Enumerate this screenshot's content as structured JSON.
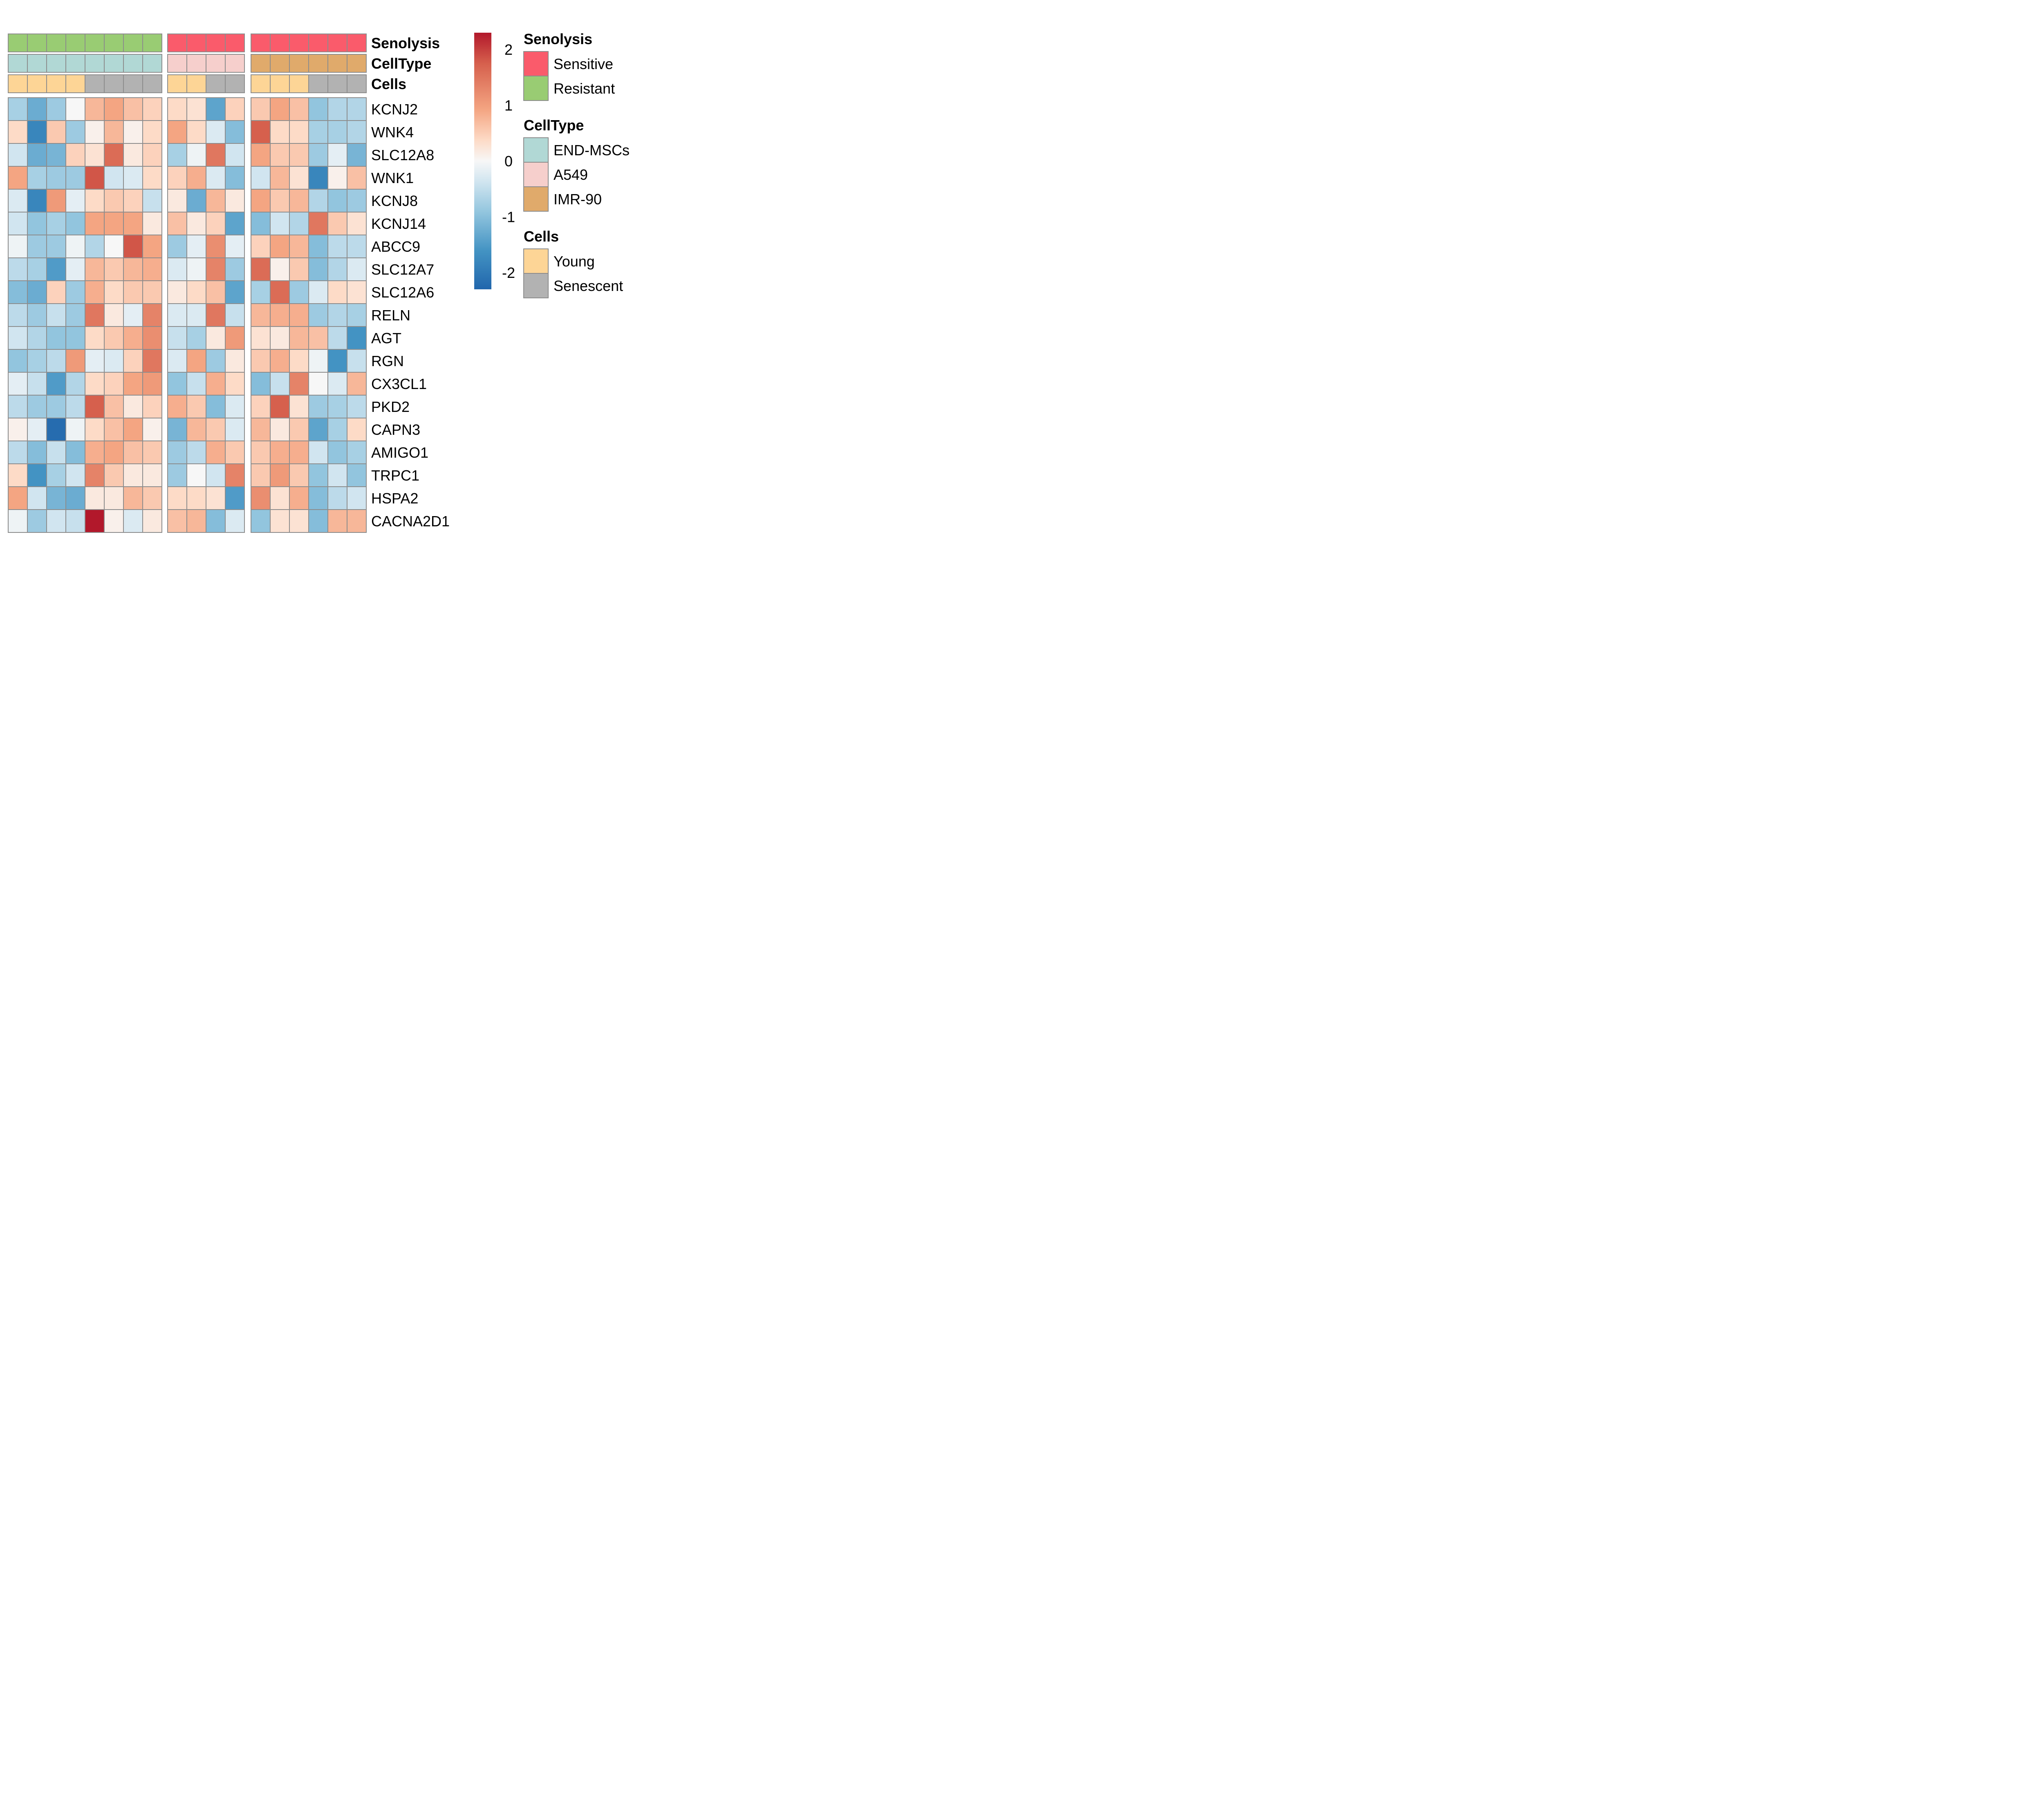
{
  "chart_data": {
    "type": "heatmap",
    "genes": [
      "KCNJ2",
      "WNK4",
      "SLC12A8",
      "WNK1",
      "KCNJ8",
      "KCNJ14",
      "ABCC9",
      "SLC12A7",
      "SLC12A6",
      "RELN",
      "AGT",
      "RGN",
      "CX3CL1",
      "PKD2",
      "CAPN3",
      "AMIGO1",
      "TRPC1",
      "HSPA2",
      "CACNA2D1"
    ],
    "column_groups": [
      8,
      4,
      6
    ],
    "annotation_rows": [
      {
        "name": "Senolysis",
        "values": [
          "Resistant",
          "Resistant",
          "Resistant",
          "Resistant",
          "Resistant",
          "Resistant",
          "Resistant",
          "Resistant",
          "Sensitive",
          "Sensitive",
          "Sensitive",
          "Sensitive",
          "Sensitive",
          "Sensitive",
          "Sensitive",
          "Sensitive",
          "Sensitive",
          "Sensitive"
        ]
      },
      {
        "name": "CellType",
        "values": [
          "END-MSCs",
          "END-MSCs",
          "END-MSCs",
          "END-MSCs",
          "END-MSCs",
          "END-MSCs",
          "END-MSCs",
          "END-MSCs",
          "A549",
          "A549",
          "A549",
          "A549",
          "IMR-90",
          "IMR-90",
          "IMR-90",
          "IMR-90",
          "IMR-90",
          "IMR-90"
        ]
      },
      {
        "name": "Cells",
        "values": [
          "Young",
          "Young",
          "Young",
          "Young",
          "Senescent",
          "Senescent",
          "Senescent",
          "Senescent",
          "Young",
          "Young",
          "Senescent",
          "Senescent",
          "Young",
          "Young",
          "Young",
          "Senescent",
          "Senescent",
          "Senescent"
        ]
      }
    ],
    "values": [
      [
        -0.8,
        -1.3,
        -0.9,
        0.0,
        0.8,
        1.0,
        0.7,
        0.5,
        0.4,
        0.3,
        -1.4,
        0.5,
        0.6,
        1.0,
        0.7,
        -1.0,
        -0.7,
        -0.7
      ],
      [
        0.4,
        -1.8,
        0.6,
        -0.9,
        0.1,
        0.8,
        0.1,
        0.4,
        1.0,
        0.4,
        -0.3,
        -1.1,
        1.6,
        0.4,
        0.4,
        -0.8,
        -0.8,
        -0.7
      ],
      [
        -0.4,
        -1.3,
        -1.2,
        0.5,
        0.3,
        1.5,
        0.2,
        0.5,
        -0.8,
        -0.1,
        1.4,
        -0.4,
        1.0,
        0.6,
        0.6,
        -0.9,
        -0.2,
        -1.2
      ],
      [
        1.0,
        -0.8,
        -0.9,
        -0.9,
        1.7,
        -0.4,
        -0.3,
        0.4,
        0.5,
        0.9,
        -0.3,
        -1.1,
        -0.4,
        0.8,
        0.3,
        -1.8,
        0.1,
        0.7
      ],
      [
        -0.3,
        -1.8,
        1.1,
        -0.2,
        0.4,
        0.6,
        0.5,
        -0.5,
        0.2,
        -1.3,
        0.8,
        0.2,
        1.0,
        0.6,
        0.8,
        -0.7,
        -1.0,
        -0.9
      ],
      [
        -0.4,
        -1.0,
        -0.8,
        -1.0,
        1.0,
        1.0,
        1.0,
        0.2,
        0.7,
        0.2,
        0.5,
        -1.4,
        -1.1,
        -0.4,
        -0.7,
        1.4,
        0.6,
        0.3
      ],
      [
        -0.1,
        -0.9,
        -0.9,
        -0.1,
        -0.7,
        0.0,
        1.7,
        1.0,
        -0.9,
        -0.2,
        1.2,
        -0.2,
        0.5,
        1.0,
        0.8,
        -1.1,
        -0.6,
        -0.6
      ],
      [
        -0.6,
        -0.8,
        -1.5,
        -0.2,
        0.8,
        0.6,
        0.8,
        0.9,
        -0.3,
        -0.1,
        1.3,
        -0.9,
        1.5,
        0.1,
        0.6,
        -1.1,
        -0.7,
        -0.3
      ],
      [
        -1.1,
        -1.3,
        0.5,
        -0.9,
        0.9,
        0.4,
        0.6,
        0.6,
        0.2,
        0.4,
        0.7,
        -1.4,
        -0.8,
        1.5,
        -0.9,
        -0.3,
        0.4,
        0.3
      ],
      [
        -0.6,
        -0.9,
        -0.5,
        -0.9,
        1.4,
        0.2,
        -0.2,
        1.3,
        -0.3,
        -0.3,
        1.4,
        -0.5,
        0.8,
        0.9,
        0.9,
        -0.9,
        -0.7,
        -0.8
      ],
      [
        -0.4,
        -0.7,
        -1.0,
        -1.0,
        0.4,
        0.6,
        0.9,
        1.2,
        -0.5,
        -0.8,
        0.2,
        1.1,
        0.3,
        0.2,
        0.8,
        0.7,
        -0.6,
        -1.6
      ],
      [
        -1.0,
        -0.8,
        -0.6,
        1.1,
        -0.2,
        -0.3,
        0.5,
        1.4,
        -0.3,
        1.0,
        -0.9,
        0.2,
        0.6,
        0.9,
        0.4,
        -0.1,
        -1.6,
        -0.5
      ],
      [
        -0.2,
        -0.5,
        -1.5,
        -0.7,
        0.4,
        0.5,
        1.0,
        1.1,
        -1.0,
        -0.5,
        0.9,
        0.4,
        -1.1,
        -0.5,
        1.3,
        0.0,
        -0.3,
        0.8
      ],
      [
        -0.6,
        -0.9,
        -0.9,
        -0.6,
        1.6,
        0.7,
        0.2,
        0.5,
        0.9,
        0.6,
        -1.1,
        -0.3,
        0.5,
        1.6,
        0.3,
        -0.9,
        -0.8,
        -0.6
      ],
      [
        0.1,
        -0.2,
        -2.2,
        -0.1,
        0.4,
        0.7,
        1.0,
        0.1,
        -1.2,
        0.8,
        0.6,
        -0.3,
        0.8,
        0.2,
        0.6,
        -1.4,
        -0.8,
        0.4
      ],
      [
        -0.6,
        -1.1,
        -0.5,
        -1.1,
        0.9,
        1.0,
        0.7,
        0.6,
        -0.9,
        -0.6,
        0.9,
        0.6,
        0.6,
        0.9,
        0.9,
        -0.4,
        -1.0,
        -0.8
      ],
      [
        0.4,
        -1.6,
        -0.8,
        -0.4,
        1.3,
        0.6,
        0.2,
        0.2,
        -0.9,
        0.0,
        -0.4,
        1.3,
        0.6,
        1.1,
        0.6,
        -1.0,
        -0.4,
        -1.0
      ],
      [
        1.0,
        -0.4,
        -1.2,
        -1.3,
        0.2,
        0.2,
        0.8,
        0.6,
        0.4,
        0.4,
        0.3,
        -1.5,
        1.2,
        0.3,
        0.9,
        -1.1,
        -0.6,
        -0.4
      ],
      [
        -0.1,
        -0.9,
        -0.4,
        -0.5,
        2.3,
        0.1,
        -0.3,
        0.2,
        0.7,
        0.8,
        -1.1,
        -0.3,
        -1.0,
        0.3,
        0.3,
        -1.1,
        0.8,
        0.8
      ]
    ],
    "color_scale": {
      "min": -2.3,
      "max": 2.3,
      "ticks": [
        2,
        1,
        0,
        -1,
        -2
      ],
      "low": "#2166ac",
      "mid": "#f7f7f7",
      "high": "#b2182b"
    },
    "legend": {
      "placement": "right",
      "groups": [
        {
          "title": "Senolysis",
          "items": [
            {
              "label": "Sensitive",
              "color": "#fa5b6b"
            },
            {
              "label": "Resistant",
              "color": "#99cc73"
            }
          ]
        },
        {
          "title": "CellType",
          "items": [
            {
              "label": "END-MSCs",
              "color": "#b1d8d5"
            },
            {
              "label": "A549",
              "color": "#f6cfcc"
            },
            {
              "label": "IMR-90",
              "color": "#e0aa6b"
            }
          ]
        },
        {
          "title": "Cells",
          "items": [
            {
              "label": "Young",
              "color": "#fdd596"
            },
            {
              "label": "Senescent",
              "color": "#b2b2b2"
            }
          ]
        }
      ]
    }
  }
}
